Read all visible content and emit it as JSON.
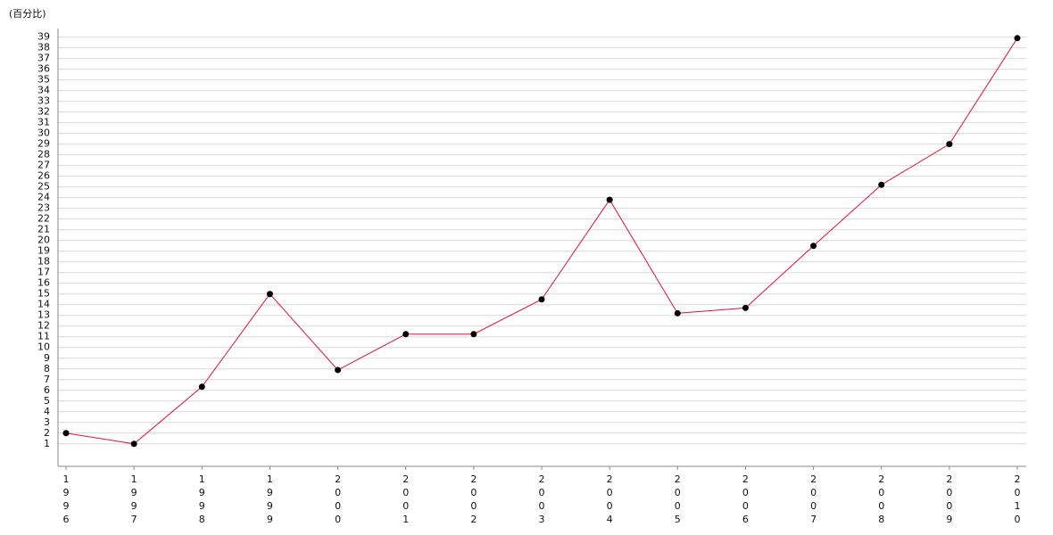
{
  "chart_data": {
    "type": "line",
    "y_label": "(百分比)",
    "categories": [
      "1996",
      "1997",
      "1998",
      "1999",
      "2000",
      "2001",
      "2002",
      "2003",
      "2004",
      "2005",
      "2006",
      "2007",
      "2008",
      "2009",
      "2010"
    ],
    "series": [
      {
        "color": "#e0103c",
        "values": [
          2,
          1,
          6.33,
          15,
          7.9,
          11.25,
          11.25,
          14.5,
          23.8,
          13.2,
          13.7,
          19.5,
          25.2,
          29,
          38.9
        ]
      }
    ],
    "ylim": [
      -1.1,
      39.8
    ],
    "yticks": [
      1,
      2,
      3,
      4,
      5,
      6,
      7,
      8,
      9,
      10,
      11,
      12,
      13,
      14,
      15,
      16,
      17,
      18,
      19,
      20,
      21,
      22,
      23,
      24,
      25,
      26,
      27,
      28,
      29,
      30,
      31,
      32,
      33,
      34,
      35,
      36,
      37,
      38,
      39
    ],
    "grid": true,
    "marker_color": "#000000"
  }
}
